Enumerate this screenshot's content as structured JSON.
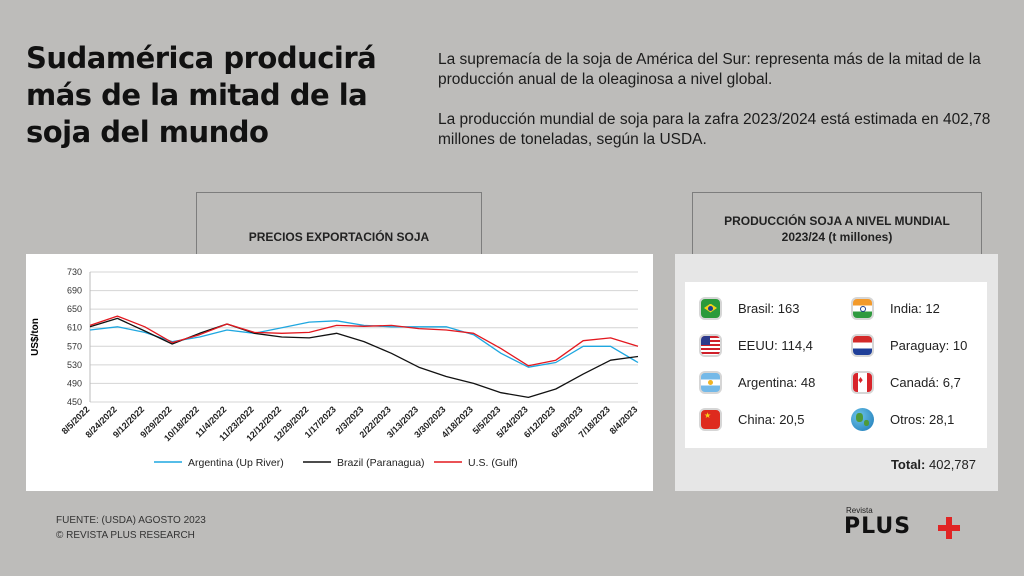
{
  "title": "Sudamérica producirá más de la mitad de la soja del mundo",
  "intro": {
    "p1": "La supremacía de la soja de América del Sur: representa más de la mitad de la producción anual de la oleaginosa a nivel global.",
    "p2": "La producción mundial de soja para la zafra 2023/2024 está estimada en 402,78 millones de toneladas, según la USDA."
  },
  "chart_data": {
    "type": "line",
    "title": "PRECIOS EXPORTACIÓN SOJA",
    "ylabel": "US$/ton",
    "xlabel": "",
    "ylim": [
      450,
      730
    ],
    "yticks": [
      450,
      490,
      530,
      570,
      610,
      650,
      690,
      730
    ],
    "grid": true,
    "legend_position": "bottom",
    "categories": [
      "8/5/2022",
      "8/24/2022",
      "9/12/2022",
      "9/29/2022",
      "10/18/2022",
      "11/4/2022",
      "11/23/2022",
      "12/12/2022",
      "12/29/2022",
      "1/17/2023",
      "2/3/2023",
      "2/22/2023",
      "3/13/2023",
      "3/30/2023",
      "4/18/2023",
      "5/5/2023",
      "5/24/2023",
      "6/12/2023",
      "6/29/2023",
      "7/18/2023",
      "8/4/2023"
    ],
    "series": [
      {
        "name": "Argentina (Up River)",
        "color": "#1fa7e0",
        "values": [
          605,
          612,
          600,
          580,
          590,
          605,
          598,
          610,
          622,
          625,
          615,
          612,
          612,
          612,
          595,
          555,
          525,
          535,
          570,
          570,
          535
        ]
      },
      {
        "name": "Brazil (Paranagua)",
        "color": "#111111",
        "values": [
          612,
          630,
          603,
          575,
          598,
          618,
          598,
          590,
          588,
          598,
          580,
          555,
          525,
          505,
          490,
          470,
          460,
          478,
          510,
          540,
          548
        ]
      },
      {
        "name": "U.S. (Gulf)",
        "color": "#e3181f",
        "values": [
          615,
          635,
          612,
          578,
          595,
          618,
          600,
          598,
          600,
          615,
          613,
          615,
          608,
          605,
          598,
          565,
          528,
          540,
          582,
          588,
          570
        ]
      }
    ]
  },
  "production": {
    "title_line1": "PRODUCCIÓN SOJA A NIVEL MUNDIAL",
    "title_line2": "2023/24 (t millones)",
    "items": [
      {
        "label": "Brasil: 163",
        "flag": "brazil-flag"
      },
      {
        "label": "EEUU: 114,4",
        "flag": "usa-flag"
      },
      {
        "label": "Argentina: 48",
        "flag": "argentina-flag"
      },
      {
        "label": "China: 20,5",
        "flag": "china-flag"
      },
      {
        "label": "India: 12",
        "flag": "india-flag"
      },
      {
        "label": "Paraguay: 10",
        "flag": "paraguay-flag"
      },
      {
        "label": "Canadá: 6,7",
        "flag": "canada-flag"
      },
      {
        "label": "Otros: 28,1",
        "flag": "globe-icon"
      }
    ],
    "total_label": "Total:",
    "total_value": "402,787"
  },
  "source": {
    "line1": "FUENTE: (USDA) AGOSTO 2023",
    "line2": "© REVISTA PLUS RESEARCH"
  },
  "logo": {
    "top": "Revista",
    "main": "PLUS"
  }
}
